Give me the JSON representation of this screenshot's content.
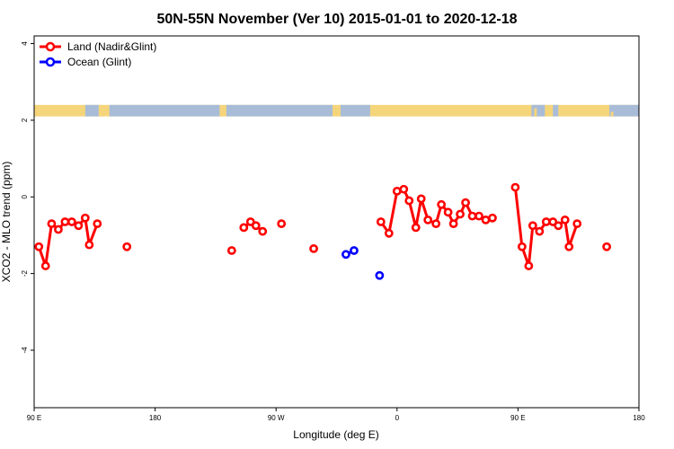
{
  "chart_data": {
    "type": "line",
    "title": "50N-55N November (Ver 10)   2015-01-01 to 2020-12-18",
    "xlabel": "Longitude (deg E)",
    "ylabel": "XCO2 - MLO trend (ppm)",
    "xlim": [
      90,
      540
    ],
    "ylim": [
      -5.5,
      4.2
    ],
    "x_ticks": [
      {
        "value": 90,
        "label": "90 E"
      },
      {
        "value": 180,
        "label": "180"
      },
      {
        "value": 270,
        "label": "90 W"
      },
      {
        "value": 360,
        "label": "0"
      },
      {
        "value": 450,
        "label": "90 E"
      },
      {
        "value": 540,
        "label": "180"
      }
    ],
    "y_ticks": [
      {
        "value": 4,
        "label": "4"
      },
      {
        "value": 2,
        "label": "2"
      },
      {
        "value": 0,
        "label": "0"
      },
      {
        "value": -2,
        "label": "-2"
      },
      {
        "value": -4,
        "label": "-4"
      }
    ],
    "land_ocean_band": {
      "y_range": [
        2.1,
        2.4
      ],
      "land_color": "#f5d57a",
      "ocean_color": "#a8bcd8"
    },
    "legend": {
      "position": "top-left"
    },
    "series": [
      {
        "name": "Land (Nadir&Glint)",
        "color": "#ff0000",
        "segments": [
          [
            [
              93.5,
              -1.3
            ],
            [
              98.5,
              -1.8
            ],
            [
              103,
              -0.7
            ],
            [
              108,
              -0.85
            ],
            [
              113,
              -0.65
            ],
            [
              118,
              -0.65
            ],
            [
              123,
              -0.75
            ],
            [
              128,
              -0.55
            ],
            [
              131,
              -1.25
            ],
            [
              137,
              -0.7
            ]
          ],
          [
            [
              159,
              -1.3
            ]
          ],
          [
            [
              237,
              -1.4
            ]
          ],
          [
            [
              246,
              -0.8
            ],
            [
              251,
              -0.65
            ],
            [
              255,
              -0.75
            ],
            [
              260,
              -0.9
            ]
          ],
          [
            [
              274,
              -0.7
            ]
          ],
          [
            [
              298,
              -1.35
            ]
          ],
          [
            [
              348,
              -0.65
            ],
            [
              354,
              -0.95
            ],
            [
              360,
              0.15
            ],
            [
              365,
              0.2
            ],
            [
              369,
              -0.1
            ],
            [
              374,
              -0.8
            ],
            [
              378,
              -0.05
            ],
            [
              383,
              -0.6
            ],
            [
              389,
              -0.7
            ],
            [
              393,
              -0.2
            ],
            [
              398,
              -0.4
            ],
            [
              402,
              -0.7
            ],
            [
              407,
              -0.45
            ],
            [
              411,
              -0.15
            ],
            [
              416,
              -0.5
            ],
            [
              421,
              -0.5
            ],
            [
              426,
              -0.6
            ],
            [
              431,
              -0.55
            ]
          ],
          [
            [
              448,
              0.25
            ],
            [
              453,
              -1.3
            ],
            [
              458,
              -1.8
            ],
            [
              461,
              -0.75
            ],
            [
              466,
              -0.9
            ],
            [
              471,
              -0.65
            ],
            [
              476,
              -0.65
            ],
            [
              480,
              -0.75
            ],
            [
              485,
              -0.6
            ],
            [
              488,
              -1.3
            ],
            [
              494,
              -0.7
            ]
          ],
          [
            [
              516,
              -1.3
            ]
          ]
        ]
      },
      {
        "name": "Ocean (Glint)",
        "color": "#0000ff",
        "segments": [
          [
            [
              322,
              -1.5
            ],
            [
              328,
              -1.4
            ]
          ],
          [
            [
              347,
              -2.05
            ]
          ]
        ]
      }
    ]
  }
}
